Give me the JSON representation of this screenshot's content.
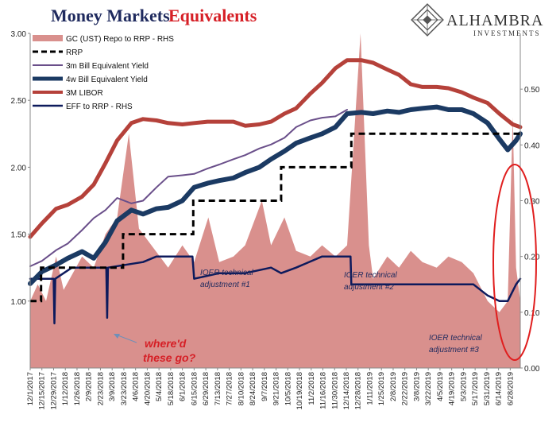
{
  "title": {
    "part1": "Money Markets",
    "part2": "Equivalents"
  },
  "brand": {
    "name": "ALHAMBRA",
    "sub": "INVESTMENTS"
  },
  "colors": {
    "gc_fill": "#d9908d",
    "rrp": "#000000",
    "bill3m": "#6a4f8a",
    "bill4w": "#1b3a63",
    "libor": "#b5413a",
    "eff": "#0d1a5c",
    "ellipse": "#e01e1e",
    "annot": "#1f2a5e",
    "annot_red": "#d61f26",
    "arrow": "#6f8fb8"
  },
  "annotations": {
    "ioer1": [
      "IOER technical",
      "adjustment #1"
    ],
    "ioer2": [
      "IOER technical",
      "adjustment #2"
    ],
    "ioer3": [
      "IOER technical",
      "adjustment #3"
    ],
    "whered": [
      "where'd",
      "these go?"
    ]
  },
  "chart_data": {
    "type": "line",
    "title": "Money Markets Equivalents",
    "xlabel": "",
    "ylabel": "",
    "ylim": [
      0.5,
      3.0
    ],
    "y_ticks": [
      "3.00",
      "2.50",
      "2.00",
      "1.50",
      "1.00"
    ],
    "y2lim": [
      0.0,
      0.6
    ],
    "y2_ticks": [
      "0.50",
      "0.40",
      "0.30",
      "0.20",
      "0.10",
      "0.00"
    ],
    "x_range": [
      "2017-12-01",
      "2019-07-10"
    ],
    "x_tick_labels": [
      "12/1/2017",
      "12/15/2017",
      "12/29/2017",
      "1/12/2018",
      "1/26/2018",
      "2/9/2018",
      "2/23/2018",
      "3/9/2018",
      "3/23/2018",
      "4/6/2018",
      "4/20/2018",
      "5/4/2018",
      "5/18/2018",
      "6/1/2018",
      "6/15/2018",
      "6/29/2018",
      "7/13/2018",
      "7/27/2018",
      "8/10/2018",
      "8/24/2018",
      "9/7/2018",
      "9/21/2018",
      "10/5/2018",
      "10/19/2018",
      "11/2/2018",
      "11/16/2018",
      "11/30/2018",
      "12/14/2018",
      "12/28/2018",
      "1/11/2019",
      "1/25/2019",
      "2/8/2019",
      "2/22/2019",
      "3/8/2019",
      "3/22/2019",
      "4/5/2019",
      "4/19/2019",
      "5/3/2019",
      "5/17/2019",
      "5/31/2019",
      "6/14/2019",
      "6/28/2019"
    ],
    "legend": [
      "GC (UST) Repo to RRP - RHS",
      "RRP",
      "3m Bill Equivalent Yield",
      "4w Bill Equivalent Yield",
      "3M LIBOR",
      "EFF to RRP - RHS"
    ],
    "legend_position": "top-left",
    "grid": false,
    "series": [
      {
        "name": "3M LIBOR",
        "axis": "left",
        "style": "line",
        "points": [
          [
            "2017-12-01",
            1.48
          ],
          [
            "2017-12-15",
            1.58
          ],
          [
            "2018-01-01",
            1.69
          ],
          [
            "2018-01-15",
            1.72
          ],
          [
            "2018-02-01",
            1.78
          ],
          [
            "2018-02-15",
            1.87
          ],
          [
            "2018-03-01",
            2.03
          ],
          [
            "2018-03-15",
            2.2
          ],
          [
            "2018-04-01",
            2.33
          ],
          [
            "2018-04-15",
            2.36
          ],
          [
            "2018-05-01",
            2.35
          ],
          [
            "2018-05-15",
            2.33
          ],
          [
            "2018-06-01",
            2.32
          ],
          [
            "2018-06-15",
            2.33
          ],
          [
            "2018-07-01",
            2.34
          ],
          [
            "2018-07-15",
            2.34
          ],
          [
            "2018-08-01",
            2.34
          ],
          [
            "2018-08-15",
            2.31
          ],
          [
            "2018-09-01",
            2.32
          ],
          [
            "2018-09-15",
            2.34
          ],
          [
            "2018-10-01",
            2.4
          ],
          [
            "2018-10-15",
            2.44
          ],
          [
            "2018-11-01",
            2.55
          ],
          [
            "2018-11-15",
            2.63
          ],
          [
            "2018-12-01",
            2.74
          ],
          [
            "2018-12-15",
            2.8
          ],
          [
            "2019-01-01",
            2.8
          ],
          [
            "2019-01-15",
            2.78
          ],
          [
            "2019-02-01",
            2.73
          ],
          [
            "2019-02-15",
            2.69
          ],
          [
            "2019-03-01",
            2.62
          ],
          [
            "2019-03-15",
            2.6
          ],
          [
            "2019-04-01",
            2.6
          ],
          [
            "2019-04-15",
            2.59
          ],
          [
            "2019-05-01",
            2.56
          ],
          [
            "2019-05-15",
            2.52
          ],
          [
            "2019-06-01",
            2.48
          ],
          [
            "2019-06-15",
            2.4
          ],
          [
            "2019-07-01",
            2.32
          ],
          [
            "2019-07-10",
            2.3
          ]
        ]
      },
      {
        "name": "3m Bill Equivalent Yield",
        "axis": "left",
        "style": "line",
        "points": [
          [
            "2017-12-01",
            1.26
          ],
          [
            "2017-12-15",
            1.3
          ],
          [
            "2018-01-01",
            1.38
          ],
          [
            "2018-01-15",
            1.43
          ],
          [
            "2018-02-01",
            1.53
          ],
          [
            "2018-02-15",
            1.62
          ],
          [
            "2018-03-01",
            1.68
          ],
          [
            "2018-03-15",
            1.77
          ],
          [
            "2018-04-01",
            1.73
          ],
          [
            "2018-04-15",
            1.75
          ],
          [
            "2018-05-01",
            1.85
          ],
          [
            "2018-05-15",
            1.93
          ],
          [
            "2018-06-01",
            1.94
          ],
          [
            "2018-06-15",
            1.95
          ],
          [
            "2018-07-01",
            1.99
          ],
          [
            "2018-07-15",
            2.02
          ],
          [
            "2018-08-01",
            2.06
          ],
          [
            "2018-08-15",
            2.09
          ],
          [
            "2018-09-01",
            2.14
          ],
          [
            "2018-09-15",
            2.17
          ],
          [
            "2018-10-01",
            2.22
          ],
          [
            "2018-10-15",
            2.3
          ],
          [
            "2018-11-01",
            2.35
          ],
          [
            "2018-11-15",
            2.37
          ],
          [
            "2018-12-01",
            2.38
          ],
          [
            "2018-12-15",
            2.43
          ]
        ]
      },
      {
        "name": "4w Bill Equivalent Yield",
        "axis": "left",
        "style": "line",
        "points": [
          [
            "2017-12-01",
            1.13
          ],
          [
            "2017-12-15",
            1.22
          ],
          [
            "2018-01-01",
            1.27
          ],
          [
            "2018-01-15",
            1.32
          ],
          [
            "2018-02-01",
            1.37
          ],
          [
            "2018-02-15",
            1.32
          ],
          [
            "2018-03-01",
            1.44
          ],
          [
            "2018-03-15",
            1.6
          ],
          [
            "2018-04-01",
            1.68
          ],
          [
            "2018-04-15",
            1.65
          ],
          [
            "2018-05-01",
            1.69
          ],
          [
            "2018-05-15",
            1.7
          ],
          [
            "2018-06-01",
            1.75
          ],
          [
            "2018-06-15",
            1.85
          ],
          [
            "2018-07-01",
            1.88
          ],
          [
            "2018-07-15",
            1.9
          ],
          [
            "2018-08-01",
            1.92
          ],
          [
            "2018-08-15",
            1.96
          ],
          [
            "2018-09-01",
            2.0
          ],
          [
            "2018-09-15",
            2.06
          ],
          [
            "2018-10-01",
            2.12
          ],
          [
            "2018-10-15",
            2.18
          ],
          [
            "2018-11-01",
            2.22
          ],
          [
            "2018-11-15",
            2.25
          ],
          [
            "2018-12-01",
            2.3
          ],
          [
            "2018-12-15",
            2.4
          ],
          [
            "2019-01-01",
            2.41
          ],
          [
            "2019-01-15",
            2.4
          ],
          [
            "2019-02-01",
            2.42
          ],
          [
            "2019-02-15",
            2.41
          ],
          [
            "2019-03-01",
            2.43
          ],
          [
            "2019-03-15",
            2.44
          ],
          [
            "2019-04-01",
            2.45
          ],
          [
            "2019-04-15",
            2.43
          ],
          [
            "2019-05-01",
            2.43
          ],
          [
            "2019-05-15",
            2.4
          ],
          [
            "2019-06-01",
            2.33
          ],
          [
            "2019-06-15",
            2.21
          ],
          [
            "2019-06-25",
            2.13
          ],
          [
            "2019-07-05",
            2.2
          ],
          [
            "2019-07-10",
            2.25
          ]
        ]
      },
      {
        "name": "RRP",
        "axis": "left",
        "style": "dashed-step",
        "points": [
          [
            "2017-12-01",
            1.0
          ],
          [
            "2017-12-14",
            1.25
          ],
          [
            "2018-03-22",
            1.5
          ],
          [
            "2018-06-14",
            1.75
          ],
          [
            "2018-09-27",
            2.0
          ],
          [
            "2018-12-20",
            2.25
          ],
          [
            "2019-07-10",
            2.25
          ]
        ]
      },
      {
        "name": "EFF to RRP - RHS",
        "axis": "right",
        "style": "line",
        "points": [
          [
            "2017-12-01",
            0.16
          ],
          [
            "2017-12-14",
            0.16
          ],
          [
            "2017-12-29",
            0.16
          ],
          [
            "2017-12-30",
            0.08
          ],
          [
            "2017-12-31",
            0.16
          ],
          [
            "2018-01-20",
            0.18
          ],
          [
            "2018-03-02",
            0.18
          ],
          [
            "2018-03-03",
            0.09
          ],
          [
            "2018-03-04",
            0.18
          ],
          [
            "2018-04-15",
            0.19
          ],
          [
            "2018-05-01",
            0.2
          ],
          [
            "2018-06-13",
            0.2
          ],
          [
            "2018-06-15",
            0.16
          ],
          [
            "2018-07-15",
            0.17
          ],
          [
            "2018-08-15",
            0.17
          ],
          [
            "2018-09-15",
            0.18
          ],
          [
            "2018-09-27",
            0.17
          ],
          [
            "2018-10-15",
            0.18
          ],
          [
            "2018-11-15",
            0.2
          ],
          [
            "2018-12-19",
            0.2
          ],
          [
            "2018-12-20",
            0.15
          ],
          [
            "2019-01-15",
            0.15
          ],
          [
            "2019-02-15",
            0.15
          ],
          [
            "2019-03-15",
            0.15
          ],
          [
            "2019-04-15",
            0.15
          ],
          [
            "2019-05-01",
            0.15
          ],
          [
            "2019-05-15",
            0.15
          ],
          [
            "2019-06-01",
            0.13
          ],
          [
            "2019-06-15",
            0.12
          ],
          [
            "2019-06-25",
            0.12
          ],
          [
            "2019-07-05",
            0.15
          ],
          [
            "2019-07-10",
            0.16
          ]
        ]
      },
      {
        "name": "GC (UST) Repo to RRP - RHS",
        "axis": "right",
        "style": "area",
        "points": [
          [
            "2017-12-01",
            0.12
          ],
          [
            "2017-12-10",
            0.15
          ],
          [
            "2017-12-20",
            0.12
          ],
          [
            "2018-01-01",
            0.2
          ],
          [
            "2018-01-10",
            0.14
          ],
          [
            "2018-02-01",
            0.2
          ],
          [
            "2018-02-15",
            0.18
          ],
          [
            "2018-03-01",
            0.24
          ],
          [
            "2018-03-15",
            0.27
          ],
          [
            "2018-03-29",
            0.42
          ],
          [
            "2018-04-10",
            0.25
          ],
          [
            "2018-04-30",
            0.21
          ],
          [
            "2018-05-15",
            0.18
          ],
          [
            "2018-06-01",
            0.22
          ],
          [
            "2018-06-15",
            0.19
          ],
          [
            "2018-07-02",
            0.27
          ],
          [
            "2018-07-15",
            0.19
          ],
          [
            "2018-08-01",
            0.2
          ],
          [
            "2018-08-15",
            0.22
          ],
          [
            "2018-09-04",
            0.3
          ],
          [
            "2018-09-15",
            0.22
          ],
          [
            "2018-10-01",
            0.27
          ],
          [
            "2018-10-15",
            0.21
          ],
          [
            "2018-11-01",
            0.2
          ],
          [
            "2018-11-15",
            0.22
          ],
          [
            "2018-12-01",
            0.2
          ],
          [
            "2018-12-15",
            0.22
          ],
          [
            "2018-12-31",
            0.6
          ],
          [
            "2019-01-10",
            0.22
          ],
          [
            "2019-01-15",
            0.16
          ],
          [
            "2019-02-01",
            0.2
          ],
          [
            "2019-02-15",
            0.18
          ],
          [
            "2019-03-01",
            0.21
          ],
          [
            "2019-03-15",
            0.19
          ],
          [
            "2019-04-01",
            0.18
          ],
          [
            "2019-04-15",
            0.2
          ],
          [
            "2019-05-01",
            0.19
          ],
          [
            "2019-05-15",
            0.17
          ],
          [
            "2019-06-01",
            0.12
          ],
          [
            "2019-06-15",
            0.1
          ],
          [
            "2019-06-25",
            0.12
          ],
          [
            "2019-07-01",
            0.45
          ],
          [
            "2019-07-05",
            0.18
          ],
          [
            "2019-07-10",
            0.12
          ]
        ]
      }
    ]
  }
}
